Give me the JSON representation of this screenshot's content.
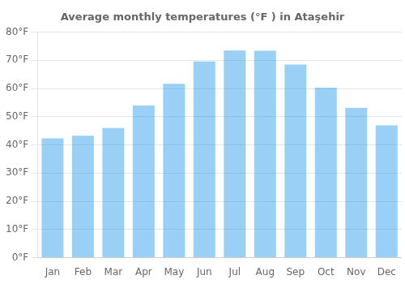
{
  "chart_data": {
    "type": "bar",
    "title": "Average monthly temperatures (°F ) in Ataşehir",
    "categories": [
      "Jan",
      "Feb",
      "Mar",
      "Apr",
      "May",
      "Jun",
      "Jul",
      "Aug",
      "Sep",
      "Oct",
      "Nov",
      "Dec"
    ],
    "values": [
      42.3,
      43.3,
      46.0,
      54.0,
      61.7,
      69.6,
      73.5,
      73.4,
      68.5,
      60.3,
      53.1,
      46.9
    ],
    "ylim": [
      0,
      80
    ],
    "yticks": [
      {
        "value": 0,
        "label": "0°F"
      },
      {
        "value": 10,
        "label": "10°F"
      },
      {
        "value": 20,
        "label": "20°F"
      },
      {
        "value": 30,
        "label": "30°F"
      },
      {
        "value": 40,
        "label": "40°F"
      },
      {
        "value": 50,
        "label": "50°F"
      },
      {
        "value": 60,
        "label": "60°F"
      },
      {
        "value": 70,
        "label": "70°F"
      },
      {
        "value": 80,
        "label": "80°F"
      }
    ],
    "grid": true
  }
}
